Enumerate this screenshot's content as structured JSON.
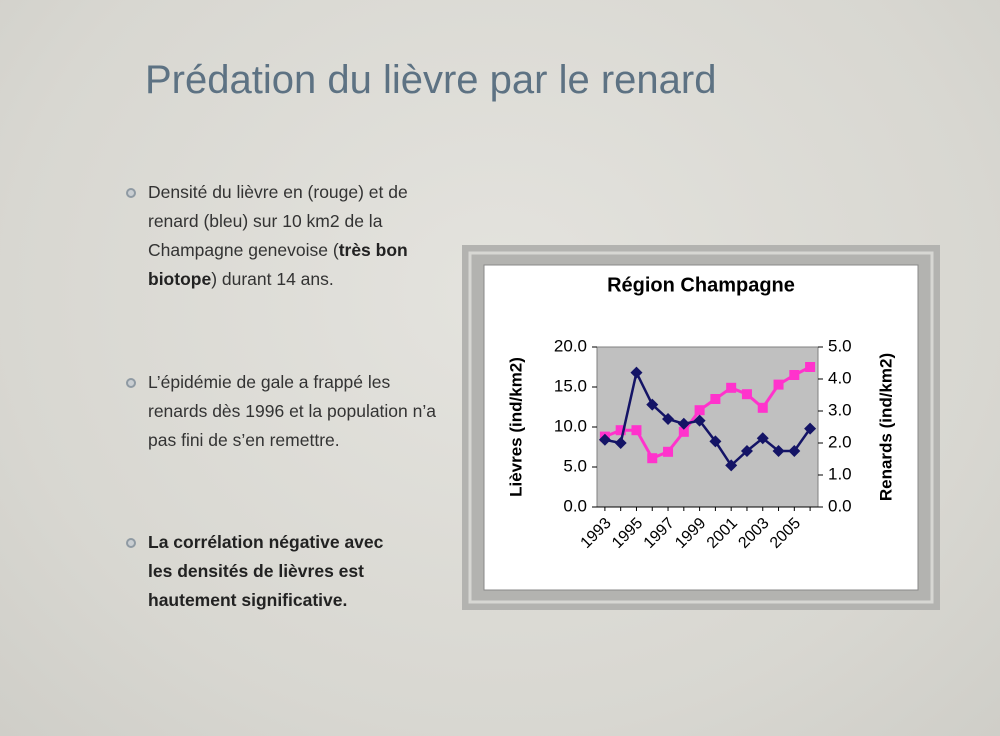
{
  "slide": {
    "title": "Prédation du lièvre par le renard",
    "bullets": [
      {
        "before": "Densité du lièvre en (rouge) et de renard (bleu) sur 10 km2 de la Champagne genevoise (",
        "bold": "très bon biotope",
        "after": ") durant 14 ans."
      },
      {
        "text": "L’épidémie de gale a frappé les renards dès 1996 et la population n’a pas fini de s’en remettre."
      },
      {
        "bold": "La corrélation négative avec les densités de lièvres est hautement significative."
      }
    ]
  },
  "chart_data": {
    "type": "line",
    "title": "Région Champagne",
    "y_label": "Lièvres (ind/km2)",
    "y2_label": "Renards (ind/km2)",
    "categories": [
      "1993",
      null,
      "1995",
      null,
      "1997",
      null,
      "1999",
      null,
      "2001",
      null,
      "2003",
      null,
      "2005",
      null
    ],
    "series": [
      {
        "color": "#ff33cc",
        "marker": "square",
        "values": [
          8.8,
          9.6,
          9.6,
          6.1,
          6.9,
          9.4,
          12.1,
          13.5,
          14.9,
          14.1,
          12.4,
          15.3,
          16.5,
          17.5
        ]
      },
      {
        "color": "#141466",
        "marker": "diamond",
        "axis": "y2",
        "values": [
          2.1,
          2.0,
          4.2,
          3.2,
          2.75,
          2.6,
          2.7,
          2.05,
          1.3,
          1.75,
          2.15,
          1.75,
          1.75,
          2.45
        ]
      }
    ],
    "ylim": [
      0,
      20
    ],
    "yticks": [
      {
        "value": 0,
        "label": "0.0"
      },
      {
        "value": 5,
        "label": "5.0"
      },
      {
        "value": 10,
        "label": "10.0"
      },
      {
        "value": 15,
        "label": "15.0"
      },
      {
        "value": 20,
        "label": "20.0"
      }
    ],
    "y2lim": [
      0,
      5
    ],
    "y2ticks": [
      {
        "value": 0,
        "label": "0.0"
      },
      {
        "value": 1,
        "label": "1.0"
      },
      {
        "value": 2,
        "label": "2.0"
      },
      {
        "value": 3,
        "label": "3.0"
      },
      {
        "value": 4,
        "label": "4.0"
      },
      {
        "value": 5,
        "label": "5.0"
      }
    ],
    "grid": false
  }
}
